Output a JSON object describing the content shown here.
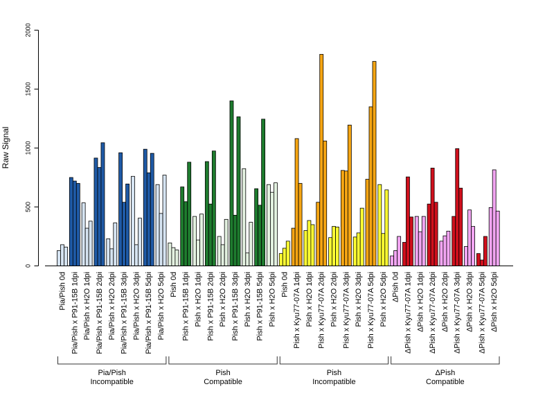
{
  "chart_data": {
    "type": "bar",
    "ylabel": "Raw Signal",
    "ylim": [
      0,
      2000
    ],
    "yticks": [
      0,
      500,
      1000,
      1500,
      2000
    ],
    "grid": false,
    "legend": "none",
    "categories": [
      "Pia/Pish 0d",
      "Pia/Pish x P91-15B 1dpi",
      "Pia/Pish x H2O 1dpi",
      "Pia/Pish x P91-15B 2dpi",
      "Pia/Pish x H2O 2dpi",
      "Pia/Pish x P91-15B 3dpi",
      "Pia/Pish x H2O 3dpi",
      "Pia/Pish x P91-15B 5dpi",
      "Pia/Pish x H2O 5dpi",
      "Pish 0d",
      "Pish x P91-15B 1dpi",
      "Pish x H2O 1dpi",
      "Pish x P91-15B 2dpi",
      "Pish x H2O 2dpi",
      "Pish x P91-15B 3dpi",
      "Pish x H2O 3dpi",
      "Pish x P91-15B 5dpi",
      "Pish x H2O 5dpi",
      "Pish 0d",
      "Pish x Kyu77-07A 1dpi",
      "Pish x H2O 1dpi",
      "Pish x Kyu77-07A 2dpi",
      "Pish x H2O 2dpi",
      "Pish x Kyu77-07A 3dpi",
      "Pish x H2O 3dpi",
      "Pish x Kyu77-07A 5dpi",
      "Pish x H2O 5dpi",
      "ΔPish 0d",
      "ΔPish x Kyu77-07A 1dpi",
      "ΔPish x H2O 1dpi",
      "ΔPish x Kyu77-07A 2dpi",
      "ΔPish x H2O 2dpi",
      "ΔPish x Kyu77-07A 3dpi",
      "ΔPish x H2O 3dpi",
      "ΔPish x Kyu77-07A 5dpi",
      "ΔPish x H2O 5dpi"
    ],
    "values": [
      [
        130,
        180,
        160
      ],
      [
        750,
        720,
        700
      ],
      [
        535,
        320,
        380
      ],
      [
        915,
        835,
        1045
      ],
      [
        230,
        145,
        365
      ],
      [
        960,
        540,
        695
      ],
      [
        760,
        180,
        405
      ],
      [
        990,
        790,
        955
      ],
      [
        690,
        445,
        770
      ],
      [
        195,
        155,
        135
      ],
      [
        670,
        545,
        880
      ],
      [
        420,
        220,
        440
      ],
      [
        885,
        525,
        975
      ],
      [
        250,
        180,
        395
      ],
      [
        1400,
        430,
        1265
      ],
      [
        825,
        110,
        370
      ],
      [
        655,
        515,
        1245
      ],
      [
        690,
        625,
        705
      ],
      [
        105,
        150,
        210
      ],
      [
        320,
        1080,
        700
      ],
      [
        300,
        385,
        350
      ],
      [
        540,
        1795,
        1060
      ],
      [
        240,
        335,
        330
      ],
      [
        810,
        805,
        1195
      ],
      [
        245,
        280,
        490
      ],
      [
        735,
        1350,
        1735
      ],
      [
        690,
        275,
        645
      ],
      [
        85,
        130,
        250
      ],
      [
        200,
        755,
        415
      ],
      [
        420,
        290,
        420
      ],
      [
        525,
        830,
        540
      ],
      [
        210,
        255,
        295
      ],
      [
        420,
        995,
        660
      ],
      [
        165,
        475,
        335
      ],
      [
        105,
        50,
        250
      ],
      [
        495,
        815,
        465
      ]
    ],
    "groups": [
      {
        "line1": "Pia/Pish",
        "line2": "Incompatible",
        "color_inoc": "#1F5AA6",
        "color_h2o": "#D6E4F2",
        "color_0d": "#D6E4F2"
      },
      {
        "line1": "Pish",
        "line2": "Compatible",
        "color_inoc": "#1E7B2E",
        "color_h2o": "#E3F1E0",
        "color_0d": "#E3F1E0"
      },
      {
        "line1": "Pish",
        "line2": "Incompatible",
        "color_inoc": "#F5A513",
        "color_h2o": "#FFFF33",
        "color_0d": "#FFFF33"
      },
      {
        "line1": "ΔPish",
        "line2": "Compatible",
        "color_inoc": "#D0101D",
        "color_h2o": "#F2A5F2",
        "color_0d": "#F2A5F2"
      }
    ],
    "bar_stroke": "#000000"
  }
}
